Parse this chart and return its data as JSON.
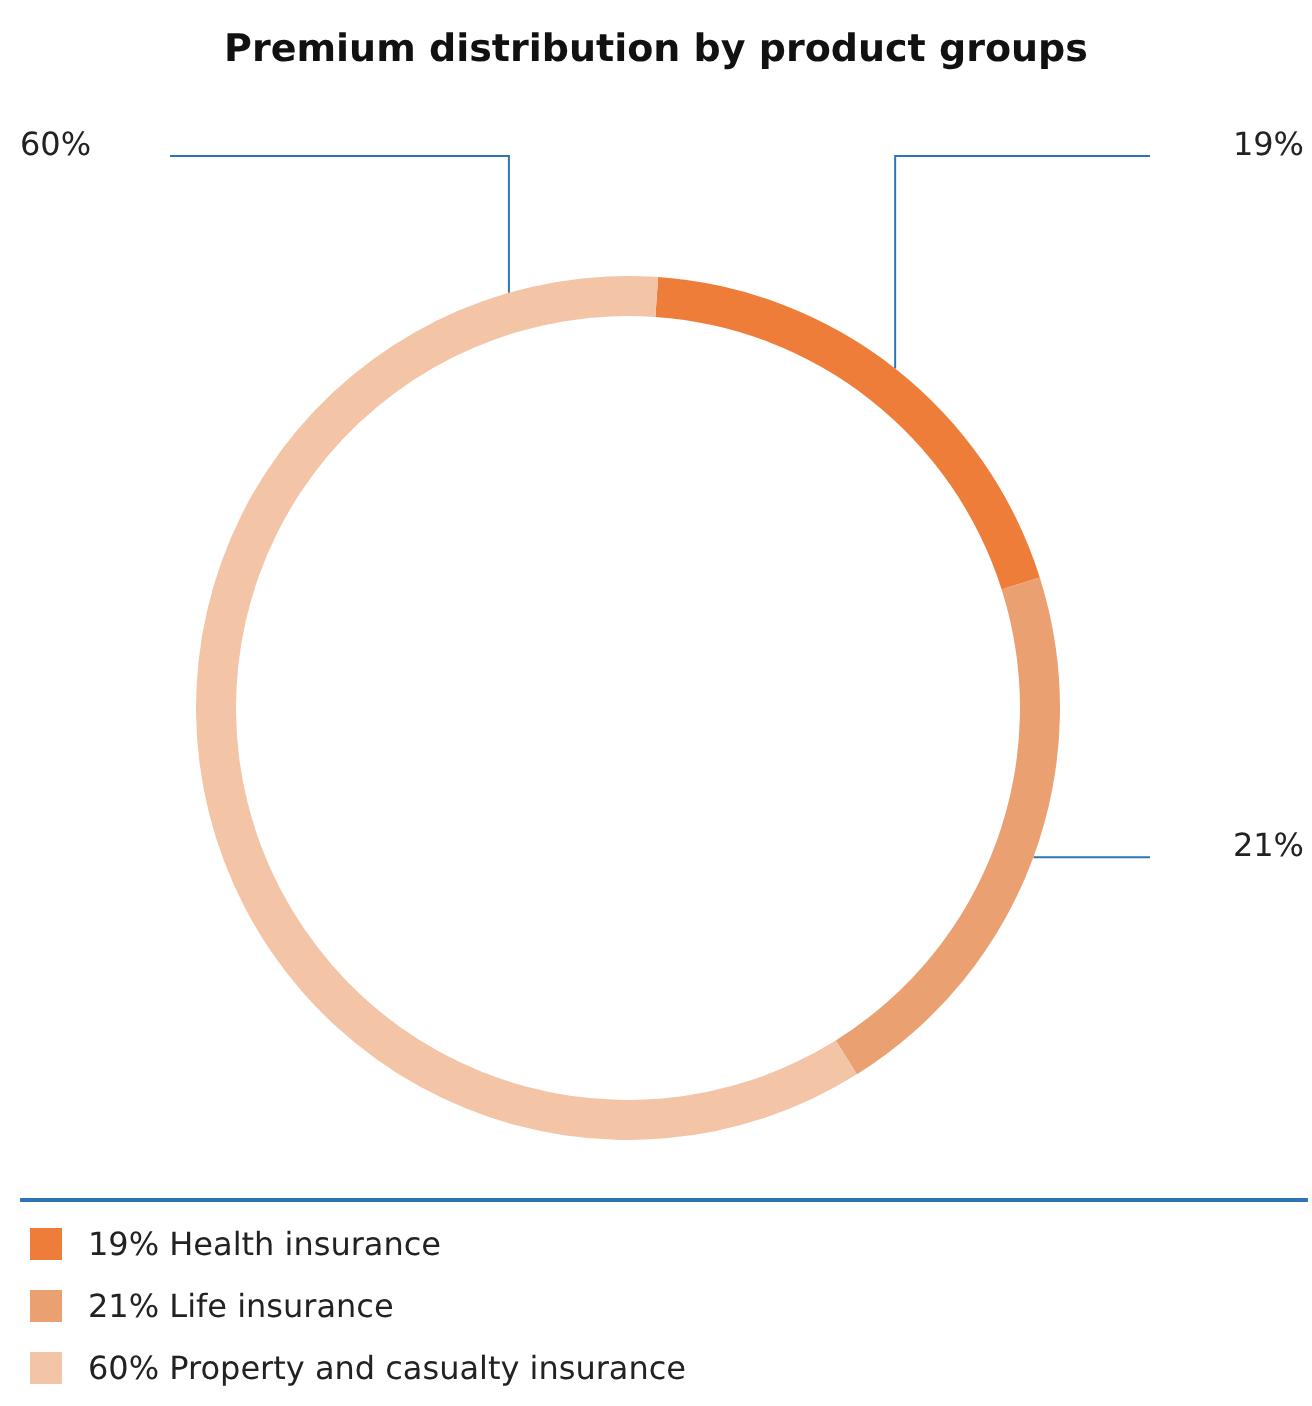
{
  "chart_data": {
    "type": "donut",
    "title": "Premium distribution by product groups",
    "categories": [
      "19% Health insurance",
      "21% Life insurance",
      "60% Property and casualty insurance"
    ],
    "values": [
      19,
      21,
      60
    ],
    "colors": [
      "#ef7d3a",
      "#eba072",
      "#f3c4a6"
    ],
    "value_labels": [
      "19%",
      "21%",
      "60%"
    ],
    "legend": "bottom left"
  }
}
